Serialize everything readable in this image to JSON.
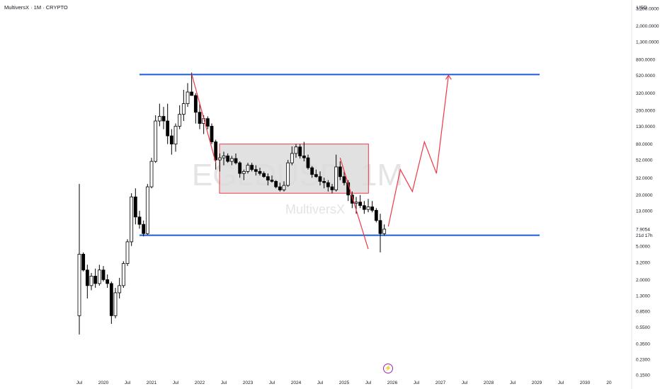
{
  "header": {
    "title": "MultiversX · 1M · CRYPTO",
    "currency": "USD"
  },
  "watermark": {
    "symbol": "EGLDUSD, 1M",
    "brand": "MultiversX"
  },
  "price_badge": {
    "price": "7.9054",
    "countdown": "21d 17h"
  },
  "colors": {
    "up": "#ffffff",
    "down": "#000000",
    "level_line": "#1e5bd7",
    "projection": "#f23645",
    "range_box_fill": "#dcdcdc",
    "range_box_border": "#f23645"
  },
  "chart_data": {
    "type": "candlestick",
    "title": "MultiversX · 1M · CRYPTO",
    "y_scale": "log",
    "y_unit": "USD",
    "y_ticks": [
      "3,200.0000",
      "2,000.0000",
      "1,300.0000",
      "800.0000",
      "520.0000",
      "320.0000",
      "200.0000",
      "130.0000",
      "80.0000",
      "52.0000",
      "32.0000",
      "20.0000",
      "13.0000",
      "7.9054",
      "5.0000",
      "3.2000",
      "2.0000",
      "1.3000",
      "0.8500",
      "0.5500",
      "0.3500",
      "0.2300",
      "0.1500"
    ],
    "x_ticks": [
      "Jul",
      "2020",
      "Jul",
      "2021",
      "Jul",
      "2022",
      "Jul",
      "2023",
      "Jul",
      "2024",
      "Jul",
      "2025",
      "Jul",
      "2026",
      "Jul",
      "2027",
      "Jul",
      "2028",
      "Jul",
      "2029",
      "Jul",
      "2030",
      "20"
    ],
    "horizontal_levels": [
      530,
      6.7
    ],
    "range_box": {
      "from": "2022-07",
      "to": "2025-06",
      "high": 80,
      "low": 21
    },
    "candles": [
      {
        "t": "2019-07",
        "o": 0.75,
        "h": 27,
        "l": 0.45,
        "c": 4.0
      },
      {
        "t": "2019-08",
        "o": 4.0,
        "h": 4.2,
        "l": 2.5,
        "c": 2.6
      },
      {
        "t": "2019-09",
        "o": 2.6,
        "h": 3.0,
        "l": 1.2,
        "c": 1.7
      },
      {
        "t": "2019-10",
        "o": 1.7,
        "h": 2.4,
        "l": 1.5,
        "c": 2.2
      },
      {
        "t": "2019-11",
        "o": 2.2,
        "h": 2.7,
        "l": 1.6,
        "c": 1.8
      },
      {
        "t": "2019-12",
        "o": 1.8,
        "h": 3.0,
        "l": 1.7,
        "c": 2.6
      },
      {
        "t": "2020-01",
        "o": 2.6,
        "h": 2.9,
        "l": 1.9,
        "c": 2.0
      },
      {
        "t": "2020-02",
        "o": 2.0,
        "h": 2.3,
        "l": 1.6,
        "c": 1.8
      },
      {
        "t": "2020-03",
        "o": 1.8,
        "h": 1.9,
        "l": 0.6,
        "c": 0.75
      },
      {
        "t": "2020-04",
        "o": 0.75,
        "h": 1.6,
        "l": 0.7,
        "c": 1.4
      },
      {
        "t": "2020-05",
        "o": 1.4,
        "h": 2.1,
        "l": 1.2,
        "c": 1.7
      },
      {
        "t": "2020-06",
        "o": 1.7,
        "h": 3.3,
        "l": 1.6,
        "c": 3.1
      },
      {
        "t": "2020-07",
        "o": 3.1,
        "h": 6.0,
        "l": 2.9,
        "c": 5.6
      },
      {
        "t": "2020-08",
        "o": 5.6,
        "h": 21,
        "l": 5.0,
        "c": 19
      },
      {
        "t": "2020-09",
        "o": 19,
        "h": 24,
        "l": 9,
        "c": 11
      },
      {
        "t": "2020-10",
        "o": 11,
        "h": 13,
        "l": 8,
        "c": 9
      },
      {
        "t": "2020-11",
        "o": 9,
        "h": 10,
        "l": 6.5,
        "c": 7.0
      },
      {
        "t": "2020-12",
        "o": 7.0,
        "h": 27,
        "l": 6.8,
        "c": 25
      },
      {
        "t": "2021-01",
        "o": 25,
        "h": 55,
        "l": 24,
        "c": 50
      },
      {
        "t": "2021-02",
        "o": 50,
        "h": 175,
        "l": 48,
        "c": 150
      },
      {
        "t": "2021-03",
        "o": 150,
        "h": 240,
        "l": 130,
        "c": 170
      },
      {
        "t": "2021-04",
        "o": 170,
        "h": 220,
        "l": 120,
        "c": 150
      },
      {
        "t": "2021-05",
        "o": 150,
        "h": 240,
        "l": 80,
        "c": 100
      },
      {
        "t": "2021-06",
        "o": 100,
        "h": 120,
        "l": 60,
        "c": 80
      },
      {
        "t": "2021-07",
        "o": 80,
        "h": 140,
        "l": 65,
        "c": 130
      },
      {
        "t": "2021-08",
        "o": 130,
        "h": 230,
        "l": 120,
        "c": 180
      },
      {
        "t": "2021-09",
        "o": 180,
        "h": 350,
        "l": 150,
        "c": 240
      },
      {
        "t": "2021-10",
        "o": 240,
        "h": 420,
        "l": 220,
        "c": 330
      },
      {
        "t": "2021-11",
        "o": 330,
        "h": 560,
        "l": 300,
        "c": 300
      },
      {
        "t": "2021-12",
        "o": 300,
        "h": 320,
        "l": 140,
        "c": 190
      },
      {
        "t": "2022-01",
        "o": 190,
        "h": 240,
        "l": 120,
        "c": 140
      },
      {
        "t": "2022-02",
        "o": 140,
        "h": 175,
        "l": 105,
        "c": 160
      },
      {
        "t": "2022-03",
        "o": 160,
        "h": 170,
        "l": 120,
        "c": 130
      },
      {
        "t": "2022-04",
        "o": 130,
        "h": 140,
        "l": 80,
        "c": 85
      },
      {
        "t": "2022-05",
        "o": 85,
        "h": 90,
        "l": 40,
        "c": 52
      },
      {
        "t": "2022-06",
        "o": 52,
        "h": 62,
        "l": 38,
        "c": 55
      },
      {
        "t": "2022-07",
        "o": 55,
        "h": 65,
        "l": 45,
        "c": 58
      },
      {
        "t": "2022-08",
        "o": 58,
        "h": 62,
        "l": 48,
        "c": 50
      },
      {
        "t": "2022-09",
        "o": 50,
        "h": 58,
        "l": 45,
        "c": 54
      },
      {
        "t": "2022-10",
        "o": 54,
        "h": 62,
        "l": 46,
        "c": 48
      },
      {
        "t": "2022-11",
        "o": 48,
        "h": 50,
        "l": 32,
        "c": 36
      },
      {
        "t": "2022-12",
        "o": 36,
        "h": 40,
        "l": 30,
        "c": 38
      },
      {
        "t": "2023-01",
        "o": 38,
        "h": 48,
        "l": 36,
        "c": 45
      },
      {
        "t": "2023-02",
        "o": 45,
        "h": 48,
        "l": 38,
        "c": 40
      },
      {
        "t": "2023-03",
        "o": 40,
        "h": 45,
        "l": 34,
        "c": 38
      },
      {
        "t": "2023-04",
        "o": 38,
        "h": 42,
        "l": 34,
        "c": 36
      },
      {
        "t": "2023-05",
        "o": 36,
        "h": 38,
        "l": 32,
        "c": 33
      },
      {
        "t": "2023-06",
        "o": 33,
        "h": 36,
        "l": 26,
        "c": 30
      },
      {
        "t": "2023-07",
        "o": 30,
        "h": 34,
        "l": 28,
        "c": 29
      },
      {
        "t": "2023-08",
        "o": 29,
        "h": 30,
        "l": 24,
        "c": 25
      },
      {
        "t": "2023-09",
        "o": 25,
        "h": 28,
        "l": 22,
        "c": 23
      },
      {
        "t": "2023-10",
        "o": 23,
        "h": 29,
        "l": 22,
        "c": 26
      },
      {
        "t": "2023-11",
        "o": 26,
        "h": 52,
        "l": 25,
        "c": 48
      },
      {
        "t": "2023-12",
        "o": 48,
        "h": 75,
        "l": 45,
        "c": 62
      },
      {
        "t": "2024-01",
        "o": 62,
        "h": 80,
        "l": 55,
        "c": 74
      },
      {
        "t": "2024-02",
        "o": 74,
        "h": 80,
        "l": 54,
        "c": 58
      },
      {
        "t": "2024-03",
        "o": 58,
        "h": 85,
        "l": 50,
        "c": 55
      },
      {
        "t": "2024-04",
        "o": 55,
        "h": 60,
        "l": 40,
        "c": 42
      },
      {
        "t": "2024-05",
        "o": 42,
        "h": 44,
        "l": 32,
        "c": 35
      },
      {
        "t": "2024-06",
        "o": 35,
        "h": 40,
        "l": 32,
        "c": 33
      },
      {
        "t": "2024-07",
        "o": 33,
        "h": 38,
        "l": 26,
        "c": 29
      },
      {
        "t": "2024-08",
        "o": 29,
        "h": 32,
        "l": 24,
        "c": 28
      },
      {
        "t": "2024-09",
        "o": 28,
        "h": 30,
        "l": 22,
        "c": 25
      },
      {
        "t": "2024-10",
        "o": 25,
        "h": 27,
        "l": 21,
        "c": 23
      },
      {
        "t": "2024-11",
        "o": 23,
        "h": 60,
        "l": 22,
        "c": 43
      },
      {
        "t": "2024-12",
        "o": 43,
        "h": 50,
        "l": 30,
        "c": 33
      },
      {
        "t": "2025-01",
        "o": 33,
        "h": 38,
        "l": 26,
        "c": 28
      },
      {
        "t": "2025-02",
        "o": 28,
        "h": 30,
        "l": 17,
        "c": 20
      },
      {
        "t": "2025-03",
        "o": 20,
        "h": 22,
        "l": 14,
        "c": 16
      },
      {
        "t": "2025-04",
        "o": 16,
        "h": 19,
        "l": 12,
        "c": 16.5
      },
      {
        "t": "2025-05",
        "o": 16.5,
        "h": 20,
        "l": 14,
        "c": 15
      },
      {
        "t": "2025-06",
        "o": 15,
        "h": 17,
        "l": 12,
        "c": 13.5
      },
      {
        "t": "2025-07",
        "o": 13.5,
        "h": 18,
        "l": 12.5,
        "c": 14.5
      },
      {
        "t": "2025-08",
        "o": 14.5,
        "h": 17,
        "l": 12.5,
        "c": 13.2
      },
      {
        "t": "2025-09",
        "o": 13.2,
        "h": 14,
        "l": 9.5,
        "c": 10
      },
      {
        "t": "2025-10",
        "o": 10,
        "h": 12,
        "l": 4.2,
        "c": 7.0
      },
      {
        "t": "2025-11",
        "o": 7.0,
        "h": 9.0,
        "l": 6.6,
        "c": 7.9
      }
    ],
    "projection_path": [
      {
        "t": "2021-11",
        "p": 540
      },
      {
        "t": "2022-05",
        "p": 48
      }
    ],
    "projection_path_2": [
      {
        "t": "2024-12",
        "p": 55
      },
      {
        "t": "2025-07",
        "p": 4.6
      }
    ],
    "projection_path_3": [
      {
        "t": "2025-12",
        "p": 8.5
      },
      {
        "t": "2026-03",
        "p": 40
      },
      {
        "t": "2026-06",
        "p": 22
      },
      {
        "t": "2026-09",
        "p": 85
      },
      {
        "t": "2026-12",
        "p": 36
      },
      {
        "t": "2027-03",
        "p": 520
      }
    ]
  }
}
